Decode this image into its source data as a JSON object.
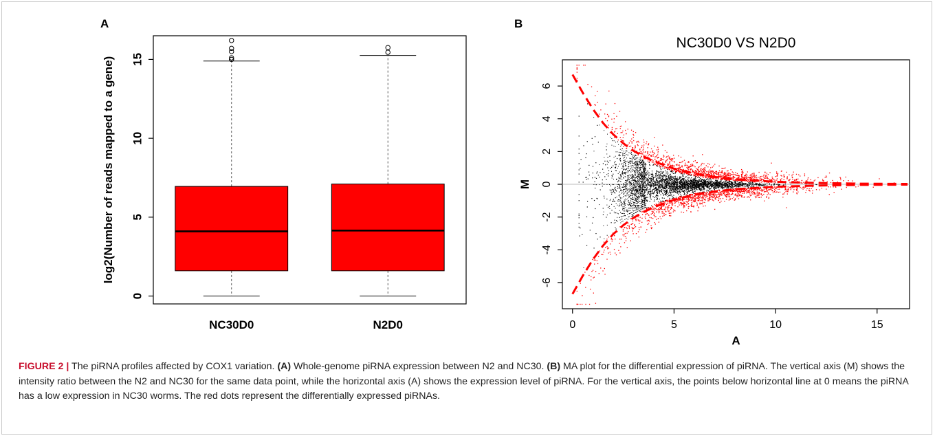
{
  "chart_data": [
    {
      "panel": "A",
      "type": "box",
      "title": "",
      "xlabel": "",
      "ylabel": "log2(Number of reads mapped to a gene)",
      "ylim": [
        -0.5,
        16.5
      ],
      "yticks": [
        "0",
        "5",
        "10",
        "15"
      ],
      "grid": false,
      "fill_color": "#ff0000",
      "categories": [
        "NC30D0",
        "N2D0"
      ],
      "boxes": [
        {
          "name": "NC30D0",
          "min": 0,
          "q1": 1.6,
          "median": 4.1,
          "q3": 6.95,
          "max": 14.9,
          "outliers": [
            15.0,
            15.1,
            15.5,
            15.7,
            16.2
          ]
        },
        {
          "name": "N2D0",
          "min": 0,
          "q1": 1.6,
          "median": 4.15,
          "q3": 7.1,
          "max": 15.25,
          "outliers": [
            15.45,
            15.75
          ]
        }
      ]
    },
    {
      "panel": "B",
      "type": "scatter",
      "title": "NC30D0 VS N2D0",
      "xlabel": "A",
      "ylabel": "M",
      "xlim": [
        -0.5,
        16.6
      ],
      "ylim": [
        -7.6,
        7.6
      ],
      "xticks": [
        "0",
        "5",
        "10",
        "15"
      ],
      "yticks": [
        "-6",
        "-4",
        "-2",
        "0",
        "2",
        "4",
        "6"
      ],
      "grid": false,
      "series": [
        {
          "role": "not differential",
          "color": "#000000"
        },
        {
          "role": "differentially expressed",
          "color": "#ff0000"
        }
      ],
      "threshold_curve": {
        "color": "#ff0000",
        "style": "dashed",
        "points": [
          [
            0,
            6.7
          ],
          [
            0.5,
            5.6
          ],
          [
            1,
            4.6
          ],
          [
            1.5,
            3.75
          ],
          [
            2,
            3.05
          ],
          [
            2.5,
            2.5
          ],
          [
            3,
            2.05
          ],
          [
            3.5,
            1.7
          ],
          [
            4,
            1.4
          ],
          [
            5,
            0.95
          ],
          [
            6,
            0.65
          ],
          [
            7,
            0.45
          ],
          [
            8,
            0.3
          ],
          [
            10,
            0.15
          ],
          [
            12,
            0.08
          ],
          [
            14,
            0.04
          ],
          [
            16.5,
            0.02
          ]
        ]
      },
      "horizontal_line": {
        "y": 0,
        "color": "#bbbbbb"
      }
    }
  ],
  "panels": {
    "a_label": "A",
    "b_label": "B"
  },
  "caption": {
    "lead": "FIGURE 2 |",
    "intro": " The piRNA profiles affected by COX1 variation. ",
    "a_tag": "(A)",
    "a_text": " Whole-genome piRNA expression between N2 and NC30. ",
    "b_tag": "(B)",
    "b_text": " MA plot for the differential expression of piRNA. The vertical axis (M) shows the intensity ratio between the N2 and NC30 for the same data point, while the horizontal axis (A) shows the expression level of piRNA. For the vertical axis, the points below horizontal line at 0 means the piRNA has a low expression in NC30 worms. The red dots represent the differentially expressed piRNAs."
  }
}
